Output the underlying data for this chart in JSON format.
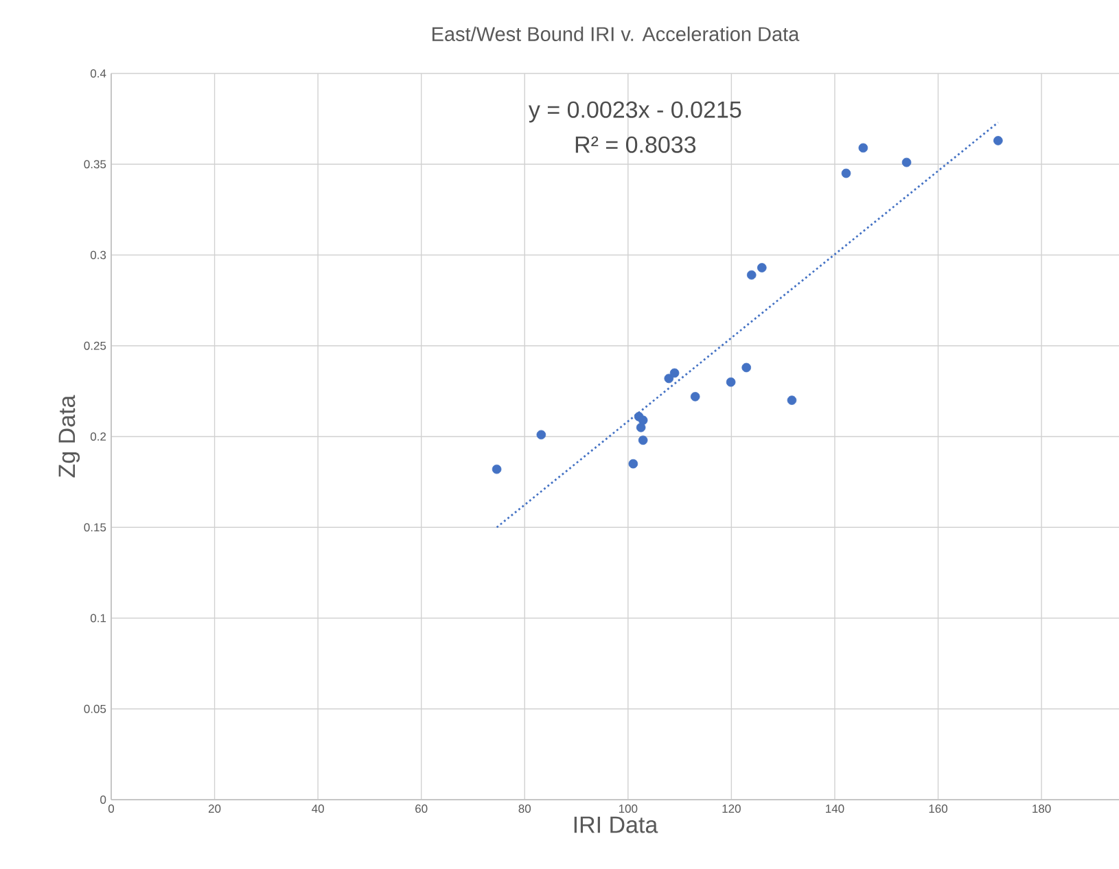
{
  "chart_data": {
    "type": "scatter",
    "title": "East/West Bound IRI v. Acceleration Data",
    "xlabel": "IRI Data",
    "ylabel": "Zg Data",
    "xlim": [
      0,
      195
    ],
    "ylim": [
      0,
      0.4
    ],
    "xticks": [
      0,
      20,
      40,
      60,
      80,
      100,
      120,
      140,
      160,
      180
    ],
    "yticks": [
      0,
      0.05,
      0.1,
      0.15,
      0.2,
      0.25,
      0.3,
      0.35,
      0.4
    ],
    "grid": true,
    "marker": "circle",
    "annotations": [
      "y = 0.0023x - 0.0215",
      "R² = 0.8033"
    ],
    "series": [
      {
        "color": "#4472c4",
        "x": [
          74.6,
          83.2,
          101.0,
          102.1,
          102.5,
          102.9,
          102.9,
          107.9,
          109.0,
          113.0,
          119.9,
          122.9,
          123.9,
          125.9,
          131.7,
          142.2,
          145.5,
          153.9,
          171.6
        ],
        "values": [
          0.182,
          0.201,
          0.185,
          0.211,
          0.205,
          0.209,
          0.198,
          0.232,
          0.235,
          0.222,
          0.23,
          0.238,
          0.289,
          0.293,
          0.22,
          0.345,
          0.359,
          0.351,
          0.363
        ]
      },
      {
        "type": "line",
        "color": "#4472c4",
        "line_style": "dotted",
        "marker": "none",
        "x": [
          74.6,
          171.6
        ],
        "values": [
          0.15,
          0.373
        ]
      }
    ]
  }
}
